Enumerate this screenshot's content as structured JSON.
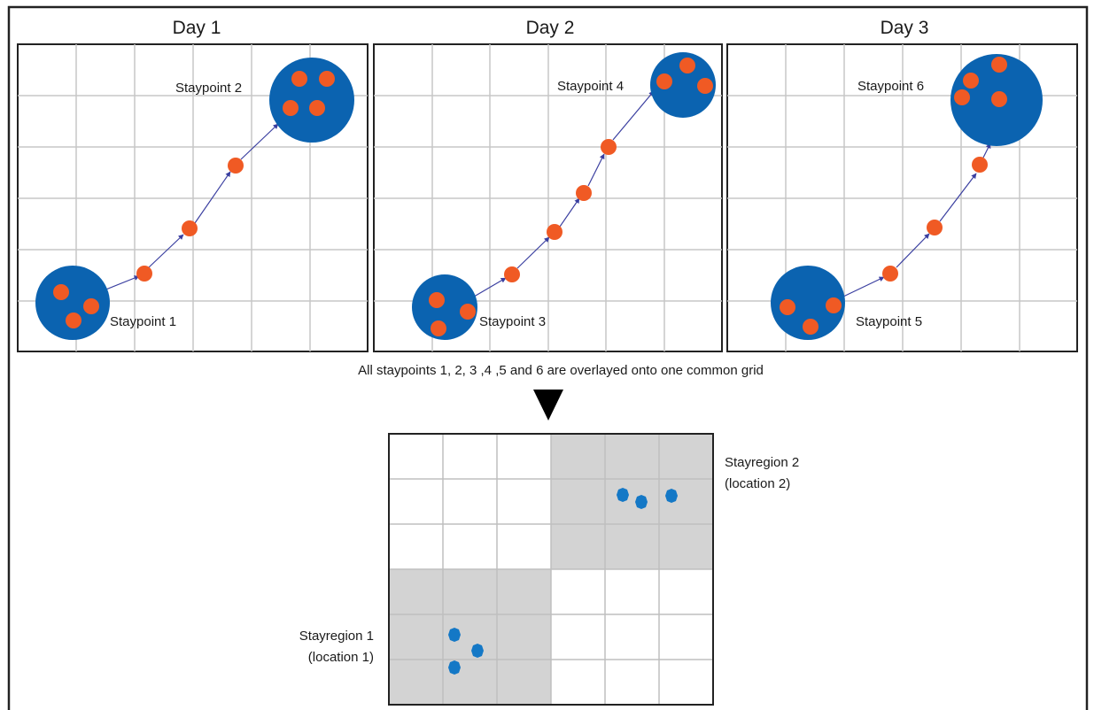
{
  "panels": [
    {
      "title": "Day 1",
      "start_label": "Staypoint 1",
      "end_label": "Staypoint 2"
    },
    {
      "title": "Day 2",
      "start_label": "Staypoint 3",
      "end_label": "Staypoint 4"
    },
    {
      "title": "Day 3",
      "start_label": "Staypoint 5",
      "end_label": "Staypoint 6"
    }
  ],
  "caption": "All staypoints 1, 2, 3 ,4 ,5 and 6 are overlayed onto one common grid",
  "common_grid": {
    "region1": {
      "name": "Stayregion 1",
      "location": "(location 1)"
    },
    "region2": {
      "name": "Stayregion 2",
      "location": "(location 2)"
    }
  },
  "colors": {
    "staypoint_blue": "#0b63b0",
    "gps_orange": "#f05a24",
    "grid_line": "#c7c7c7",
    "region_fill": "#d3d3d3",
    "frame": "#222222",
    "marker_blue": "#1478c6"
  }
}
